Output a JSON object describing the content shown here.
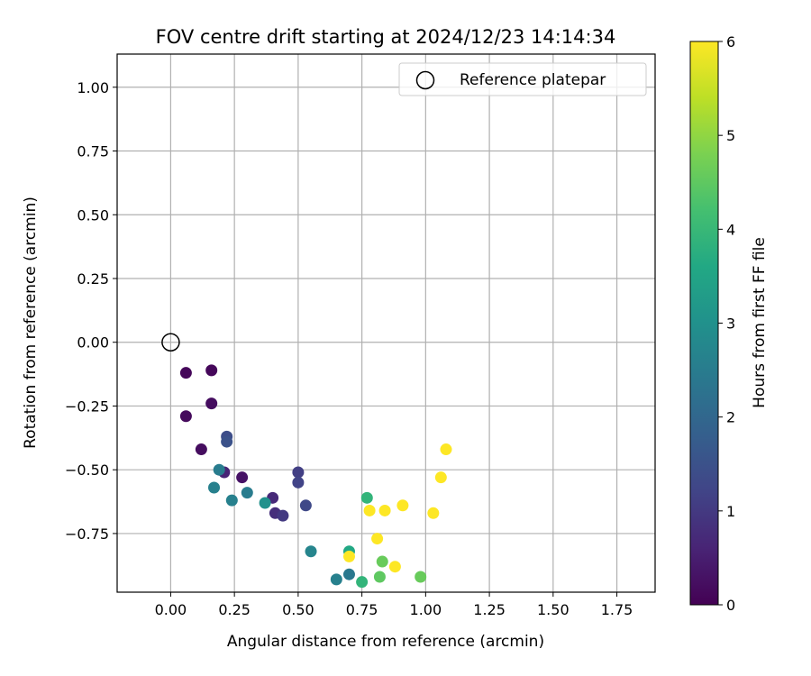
{
  "chart_data": {
    "type": "scatter",
    "title": "FOV centre drift starting at 2024/12/23 14:14:34",
    "xlabel": "Angular distance from reference (arcmin)",
    "ylabel": "Rotation from reference (arcmin)",
    "xlim": [
      -0.21,
      1.9
    ],
    "ylim": [
      -0.98,
      1.13
    ],
    "xticks": [
      "0.00",
      "0.25",
      "0.50",
      "0.75",
      "1.00",
      "1.25",
      "1.50",
      "1.75"
    ],
    "yticks": [
      "−0.75",
      "−0.50",
      "−0.25",
      "0.00",
      "0.25",
      "0.50",
      "0.75",
      "1.00"
    ],
    "grid": true,
    "legend": {
      "placement": "upper right",
      "entries": [
        "Reference platepar"
      ]
    },
    "colorbar": {
      "label": "Hours from first FF file",
      "min": 0,
      "max": 6,
      "ticks": [
        "0",
        "1",
        "2",
        "3",
        "4",
        "5",
        "6"
      ],
      "colormap": "viridis"
    },
    "reference_point": {
      "x": 0.0,
      "y": 0.0
    },
    "points": [
      {
        "x": 0.06,
        "y": -0.12,
        "hours": 0.1
      },
      {
        "x": 0.16,
        "y": -0.11,
        "hours": 0.1
      },
      {
        "x": 0.06,
        "y": -0.29,
        "hours": 0.15
      },
      {
        "x": 0.16,
        "y": -0.24,
        "hours": 0.2
      },
      {
        "x": 0.12,
        "y": -0.42,
        "hours": 0.2
      },
      {
        "x": 0.28,
        "y": -0.53,
        "hours": 0.3
      },
      {
        "x": 0.21,
        "y": -0.51,
        "hours": 0.6
      },
      {
        "x": 0.4,
        "y": -0.61,
        "hours": 0.7
      },
      {
        "x": 0.41,
        "y": -0.67,
        "hours": 0.8
      },
      {
        "x": 0.44,
        "y": -0.68,
        "hours": 1.0
      },
      {
        "x": 0.5,
        "y": -0.51,
        "hours": 1.1
      },
      {
        "x": 0.5,
        "y": -0.55,
        "hours": 1.2
      },
      {
        "x": 0.53,
        "y": -0.64,
        "hours": 1.3
      },
      {
        "x": 0.22,
        "y": -0.37,
        "hours": 1.4
      },
      {
        "x": 0.22,
        "y": -0.39,
        "hours": 1.5
      },
      {
        "x": 0.19,
        "y": -0.5,
        "hours": 2.5
      },
      {
        "x": 0.17,
        "y": -0.57,
        "hours": 2.6
      },
      {
        "x": 0.24,
        "y": -0.62,
        "hours": 2.6
      },
      {
        "x": 0.3,
        "y": -0.59,
        "hours": 2.5
      },
      {
        "x": 0.37,
        "y": -0.63,
        "hours": 3.0
      },
      {
        "x": 0.55,
        "y": -0.82,
        "hours": 2.7
      },
      {
        "x": 0.65,
        "y": -0.93,
        "hours": 2.6
      },
      {
        "x": 0.7,
        "y": -0.91,
        "hours": 2.4
      },
      {
        "x": 0.7,
        "y": -0.82,
        "hours": 3.6
      },
      {
        "x": 0.75,
        "y": -0.94,
        "hours": 3.9
      },
      {
        "x": 0.77,
        "y": -0.61,
        "hours": 3.9
      },
      {
        "x": 0.82,
        "y": -0.92,
        "hours": 4.5
      },
      {
        "x": 0.83,
        "y": -0.86,
        "hours": 4.6
      },
      {
        "x": 0.98,
        "y": -0.92,
        "hours": 4.6
      },
      {
        "x": 0.7,
        "y": -0.84,
        "hours": 6.0
      },
      {
        "x": 0.78,
        "y": -0.66,
        "hours": 6.0
      },
      {
        "x": 0.81,
        "y": -0.77,
        "hours": 6.0
      },
      {
        "x": 0.84,
        "y": -0.66,
        "hours": 6.0
      },
      {
        "x": 0.88,
        "y": -0.88,
        "hours": 6.0
      },
      {
        "x": 0.91,
        "y": -0.64,
        "hours": 6.0
      },
      {
        "x": 1.03,
        "y": -0.67,
        "hours": 6.0
      },
      {
        "x": 1.06,
        "y": -0.53,
        "hours": 6.0
      },
      {
        "x": 1.08,
        "y": -0.42,
        "hours": 6.0
      }
    ]
  }
}
